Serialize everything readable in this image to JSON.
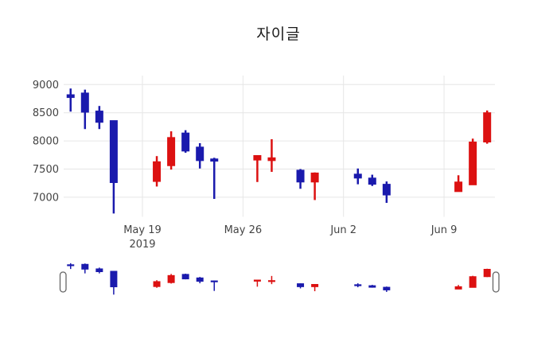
{
  "chart_data": {
    "type": "candlestick",
    "title": "자이글",
    "legend": "none",
    "grid": "on",
    "colors": {
      "increasing": "#dc1111",
      "decreasing": "#1a1aad",
      "gridline": "#e6e6e6",
      "tick_text": "#444444",
      "title_text": "#1a1a1a",
      "handle_border": "#666666",
      "handle_fill": "#ffffff"
    },
    "y_axis": {
      "ticks": [
        9000,
        8500,
        8000,
        7500,
        7000
      ],
      "range": [
        6650,
        9160
      ]
    },
    "x_axis": {
      "anchor_date": "2019-05-19",
      "ticks": [
        {
          "date": "2019-05-19",
          "label": "May 19",
          "sublabel": "2019"
        },
        {
          "date": "2019-05-26",
          "label": "May 26",
          "sublabel": ""
        },
        {
          "date": "2019-06-02",
          "label": "Jun 2",
          "sublabel": ""
        },
        {
          "date": "2019-06-09",
          "label": "Jun 9",
          "sublabel": ""
        }
      ],
      "range": [
        "2019-05-13",
        "2019-06-13"
      ]
    },
    "rangeslider": {
      "visible": true,
      "y_range": [
        6600,
        9100
      ]
    },
    "candles": [
      {
        "date": "2019-05-14",
        "open": 8820,
        "high": 8930,
        "low": 8520,
        "close": 8770
      },
      {
        "date": "2019-05-15",
        "open": 8850,
        "high": 8910,
        "low": 8210,
        "close": 8510
      },
      {
        "date": "2019-05-16",
        "open": 8530,
        "high": 8620,
        "low": 8210,
        "close": 8330
      },
      {
        "date": "2019-05-17",
        "open": 8360,
        "high": 8360,
        "low": 6710,
        "close": 7260
      },
      {
        "date": "2019-05-20",
        "open": 7280,
        "high": 7730,
        "low": 7190,
        "close": 7630
      },
      {
        "date": "2019-05-21",
        "open": 7560,
        "high": 8170,
        "low": 7490,
        "close": 8060
      },
      {
        "date": "2019-05-22",
        "open": 8140,
        "high": 8190,
        "low": 7790,
        "close": 7820
      },
      {
        "date": "2019-05-23",
        "open": 7890,
        "high": 7960,
        "low": 7510,
        "close": 7650
      },
      {
        "date": "2019-05-24",
        "open": 7680,
        "high": 7700,
        "low": 6970,
        "close": 7640
      },
      {
        "date": "2019-05-27",
        "open": 7660,
        "high": 7740,
        "low": 7270,
        "close": 7740
      },
      {
        "date": "2019-05-28",
        "open": 7650,
        "high": 8030,
        "low": 7450,
        "close": 7700
      },
      {
        "date": "2019-05-30",
        "open": 7480,
        "high": 7500,
        "low": 7150,
        "close": 7270
      },
      {
        "date": "2019-05-31",
        "open": 7270,
        "high": 7440,
        "low": 6950,
        "close": 7430
      },
      {
        "date": "2019-06-03",
        "open": 7410,
        "high": 7510,
        "low": 7230,
        "close": 7340
      },
      {
        "date": "2019-06-04",
        "open": 7340,
        "high": 7400,
        "low": 7200,
        "close": 7230
      },
      {
        "date": "2019-06-05",
        "open": 7230,
        "high": 7280,
        "low": 6900,
        "close": 7040
      },
      {
        "date": "2019-06-10",
        "open": 7100,
        "high": 7390,
        "low": 7100,
        "close": 7270
      },
      {
        "date": "2019-06-11",
        "open": 7220,
        "high": 8040,
        "low": 7220,
        "close": 7980
      },
      {
        "date": "2019-06-12",
        "open": 7980,
        "high": 8540,
        "low": 7950,
        "close": 8500
      }
    ]
  }
}
